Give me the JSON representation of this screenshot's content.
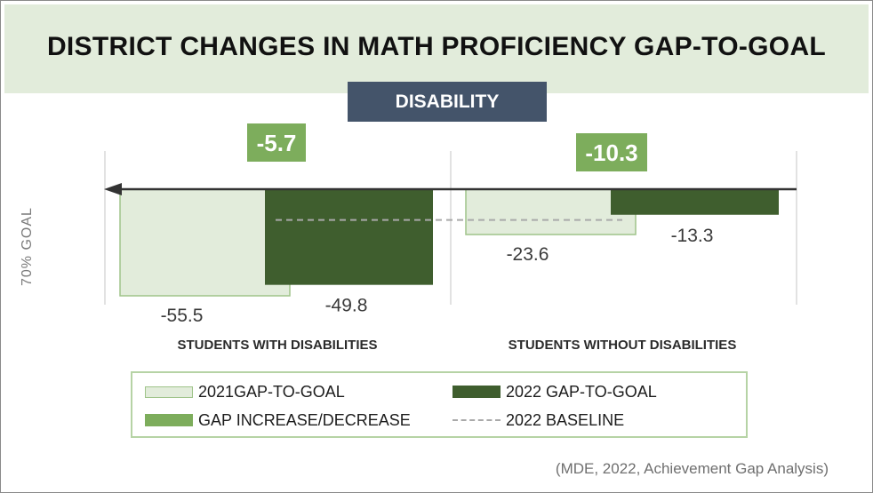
{
  "title": "DISTRICT CHANGES IN MATH PROFICIENCY GAP-TO-GOAL",
  "subtitle": "DISABILITY",
  "goal_axis_label": "70% GOAL",
  "source": "(MDE, 2022, Achievement Gap Analysis)",
  "colors": {
    "bar_2021_fill": "#e2ecdb",
    "bar_2021_border": "#9fc48a",
    "bar_2022": "#3f5e2e",
    "delta_badge": "#7dad5c",
    "baseline": "#a9a9a9",
    "subtitle_badge": "#44546a",
    "title_band": "#e2ecdb"
  },
  "legend": {
    "items": [
      {
        "key": "gap2021",
        "label": "2021GAP-TO-GOAL"
      },
      {
        "key": "gap2022",
        "label": "2022 GAP-TO-GOAL"
      },
      {
        "key": "delta",
        "label": "GAP INCREASE/DECREASE"
      },
      {
        "key": "baseline",
        "label": "2022 BASELINE"
      }
    ]
  },
  "chart_data": {
    "type": "bar",
    "title": "DISTRICT CHANGES IN MATH PROFICIENCY GAP-TO-GOAL",
    "subtitle": "DISABILITY",
    "categories": [
      "STUDENTS WITH DISABILITIES",
      "STUDENTS WITHOUT DISABILITIES"
    ],
    "series": [
      {
        "name": "2021GAP-TO-GOAL",
        "values": [
          -55.5,
          -23.6
        ],
        "labels": [
          "-55.5",
          "-23.6"
        ]
      },
      {
        "name": "2022 GAP-TO-GOAL",
        "values": [
          -49.8,
          -13.3
        ],
        "labels": [
          "-49.8",
          "-13.3"
        ]
      }
    ],
    "gap_change": {
      "name": "GAP INCREASE/DECREASE",
      "values": [
        -5.7,
        -10.3
      ],
      "labels": [
        "-5.7",
        "-10.3"
      ]
    },
    "baseline": {
      "name": "2022 BASELINE",
      "value": -16
    },
    "ylabel": "70% GOAL",
    "ylim": [
      -60,
      0
    ]
  }
}
